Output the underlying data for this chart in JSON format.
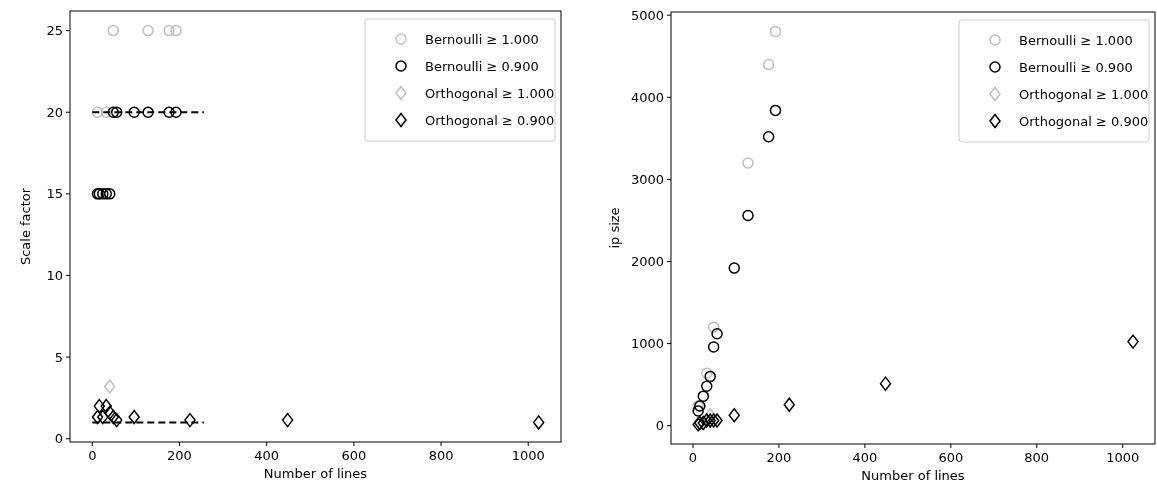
{
  "chart_data": [
    {
      "type": "scatter",
      "xlabel": "Number of lines",
      "ylabel": "Scale factor",
      "xlim": [
        -51.2,
        1075.2
      ],
      "ylim": [
        -0.2,
        26.2
      ],
      "xticks": [
        0,
        200,
        400,
        600,
        800,
        1000
      ],
      "yticks": [
        0,
        5,
        10,
        15,
        20,
        25
      ],
      "legend": "top right",
      "grid": false,
      "series": [
        {
          "name": "Bernoulli ≥ 1.000",
          "color": "#bfbfbf",
          "marker": "circle",
          "x": [
            12,
            32,
            48,
            128,
            176,
            192
          ],
          "values": [
            20,
            20,
            25,
            25,
            25,
            25
          ]
        },
        {
          "name": "Bernoulli ≥ 0.900",
          "color": "#000000",
          "marker": "circle",
          "x": [
            12,
            16,
            24,
            32,
            40,
            48,
            56,
            96,
            128,
            176,
            192
          ],
          "values": [
            15,
            15,
            15,
            15,
            15,
            20,
            20,
            20,
            20,
            20,
            20
          ]
        },
        {
          "name": "Orthogonal ≥ 1.000",
          "color": "#bfbfbf",
          "marker": "diamond",
          "x": [
            40
          ],
          "values": [
            3.2
          ]
        },
        {
          "name": "Orthogonal ≥ 0.900",
          "color": "#000000",
          "marker": "diamond",
          "x": [
            12,
            16,
            24,
            32,
            40,
            48,
            56,
            96,
            224,
            448,
            1024
          ],
          "values": [
            1.33,
            2,
            1.33,
            2,
            1.6,
            1.33,
            1.14,
            1.33,
            1.14,
            1.14,
            1
          ]
        },
        {
          "type": "line",
          "color": "#000000",
          "line_style": "dashed",
          "marker": "none",
          "x": [
            0,
            256
          ],
          "values": [
            20,
            20
          ]
        },
        {
          "type": "line",
          "color": "#000000",
          "line_style": "dashed",
          "marker": "none",
          "x": [
            0,
            256
          ],
          "values": [
            1,
            1
          ]
        }
      ]
    },
    {
      "type": "scatter",
      "xlabel": "Number of lines",
      "ylabel": "ip size",
      "xlim": [
        -51.2,
        1075.2
      ],
      "ylim": [
        -223,
        5039
      ],
      "xticks": [
        0,
        200,
        400,
        600,
        800,
        1000
      ],
      "yticks": [
        0,
        1000,
        2000,
        3000,
        4000,
        5000
      ],
      "legend": "top right",
      "grid": false,
      "series": [
        {
          "name": "Bernoulli ≥ 1.000",
          "color": "#bfbfbf",
          "marker": "circle",
          "x": [
            12,
            32,
            48,
            128,
            176,
            192
          ],
          "values": [
            240,
            640,
            1200,
            3200,
            4400,
            4800
          ]
        },
        {
          "name": "Bernoulli ≥ 0.900",
          "color": "#000000",
          "marker": "circle",
          "x": [
            12,
            16,
            24,
            32,
            40,
            48,
            56,
            96,
            128,
            176,
            192
          ],
          "values": [
            180,
            240,
            360,
            480,
            600,
            960,
            1120,
            1920,
            2560,
            3520,
            3840
          ]
        },
        {
          "name": "Orthogonal ≥ 1.000",
          "color": "#bfbfbf",
          "marker": "diamond",
          "x": [
            40
          ],
          "values": [
            128
          ]
        },
        {
          "name": "Orthogonal ≥ 0.900",
          "color": "#000000",
          "marker": "diamond",
          "x": [
            12,
            16,
            24,
            32,
            40,
            48,
            56,
            96,
            224,
            448,
            1024
          ],
          "values": [
            16,
            32,
            32,
            64,
            64,
            64,
            64,
            128,
            256,
            512,
            1024
          ]
        }
      ]
    }
  ]
}
